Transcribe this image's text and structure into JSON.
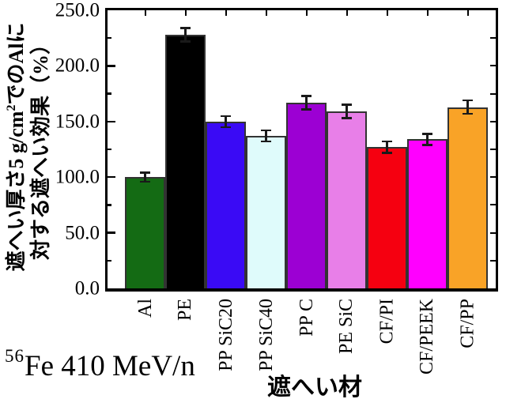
{
  "figure": {
    "background": "#ffffff",
    "y_axis_label": {
      "line1_pre": "遮へい厚さ5 g/cm",
      "line1_sup": "2",
      "line1_post": "でのAlに",
      "line2": "対する遮へい効果（%）"
    },
    "x_axis_label": "遮へい材",
    "annotation": {
      "mass_number": "56",
      "text": "Fe 410 MeV/n"
    }
  },
  "chart_data": {
    "type": "bar",
    "title": "",
    "xlabel": "遮へい材",
    "ylabel": "遮へい厚さ5 g/cm2でのAlに対する遮へい効果（%）",
    "ylim": [
      0,
      250
    ],
    "ytick_step": 50,
    "minor_tick_step": 25,
    "ytick_labels": [
      "0.0",
      "50.0",
      "100.0",
      "150.0",
      "200.0",
      "250.0"
    ],
    "grid": false,
    "legend": false,
    "annotation": "56Fe 410 MeV/n",
    "categories": [
      "Al",
      "PE",
      "PP SiC20",
      "PP SiC40",
      "PP C",
      "PE SiC",
      "CF/PI",
      "CF/PEEK",
      "CF/PP"
    ],
    "values": [
      100,
      228,
      150,
      137,
      167,
      159,
      127,
      134,
      163
    ],
    "errors": [
      4,
      6,
      5,
      5,
      6,
      6,
      5,
      5,
      6
    ],
    "bar_colors": [
      "#146b14",
      "#000000",
      "#3a0af5",
      "#dffbfb",
      "#9c00d3",
      "#e87fe8",
      "#f50010",
      "#ff00ff",
      "#f9a327"
    ],
    "bar_border_color": "#333333",
    "error_bar_color": "#1a1a1a",
    "axis_color": "#000000"
  }
}
